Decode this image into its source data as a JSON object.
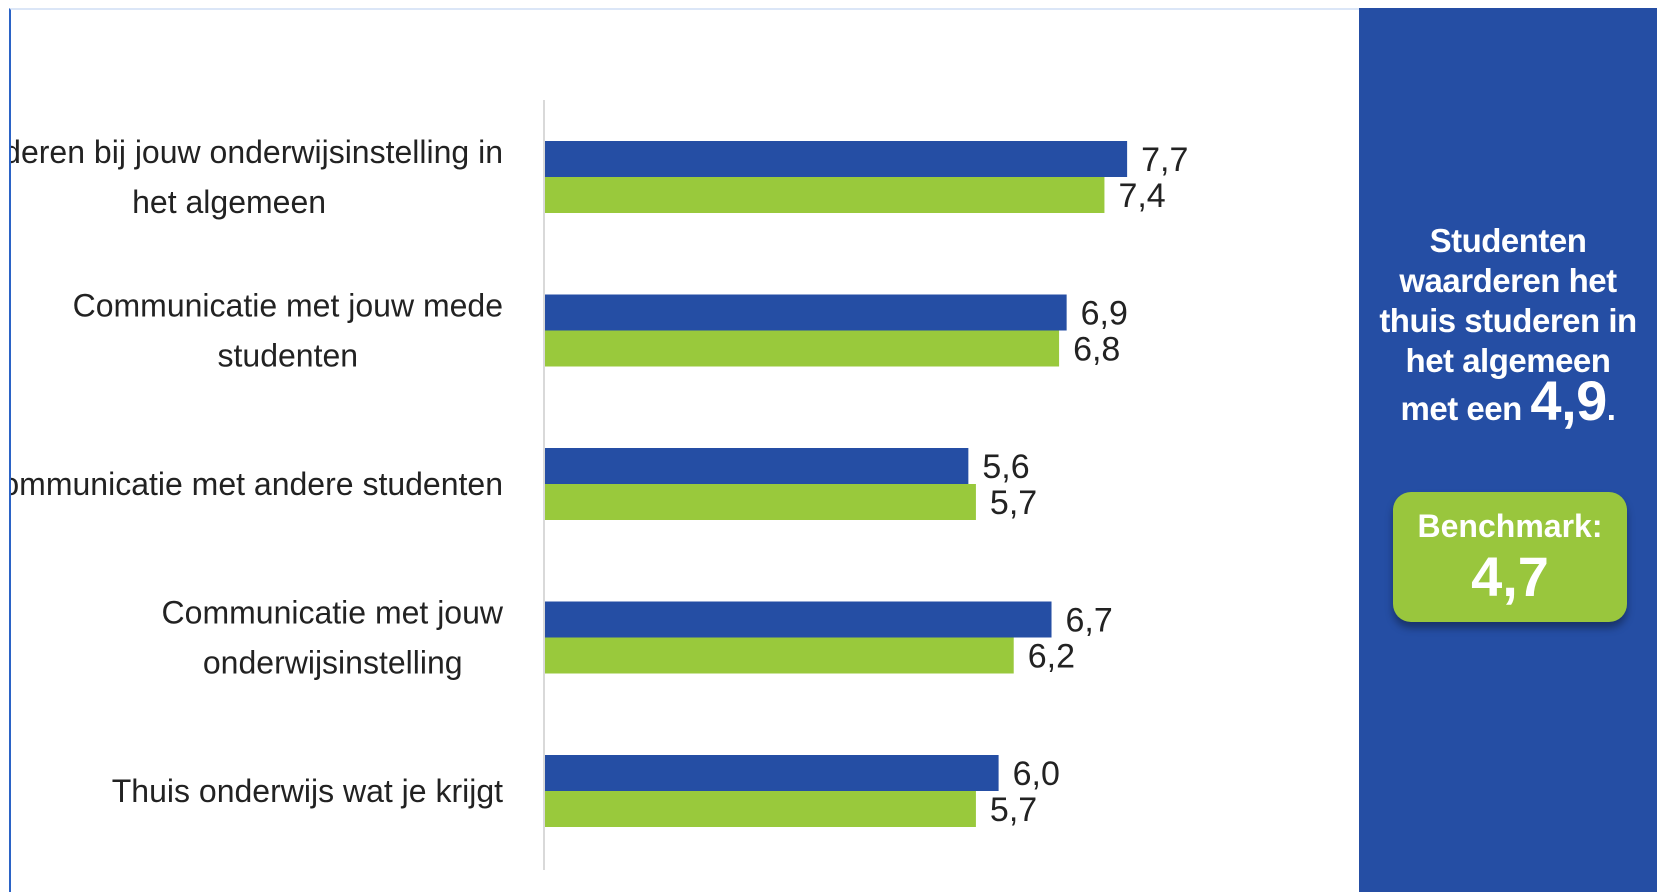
{
  "chart_data": {
    "type": "bar",
    "orientation": "horizontal",
    "categories": [
      [
        "Studeren bij jouw onderwijsinstelling in",
        "het algemeen"
      ],
      [
        "Communicatie met jouw mede",
        "studenten"
      ],
      [
        "Communicatie met andere studenten"
      ],
      [
        "Communicatie met jouw",
        "onderwijsinstelling"
      ],
      [
        "Thuis onderwijs wat je krijgt"
      ]
    ],
    "series": [
      {
        "values": [
          7.7,
          6.9,
          5.6,
          6.7,
          6.0
        ],
        "labels": [
          "7,7",
          "6,9",
          "5,6",
          "6,7",
          "6,0"
        ],
        "color": "#254ea4"
      },
      {
        "values": [
          7.4,
          6.8,
          5.7,
          6.2,
          5.7
        ],
        "labels": [
          "7,4",
          "6,8",
          "5,7",
          "6,2",
          "5,7"
        ],
        "color": "#99c93c"
      }
    ],
    "xlim": [
      0,
      10
    ],
    "legend": "none",
    "grid": false
  },
  "panel": {
    "lines": [
      "Studenten",
      "waarderen het",
      "thuis studeren in",
      "het algemeen"
    ],
    "prefix": "met een ",
    "score": "4,9",
    "suffix": ".",
    "benchmark_label": "Benchmark:",
    "benchmark_value": "4,7",
    "bg_color": "#254ea4",
    "benchmark_color": "#99c63d"
  }
}
